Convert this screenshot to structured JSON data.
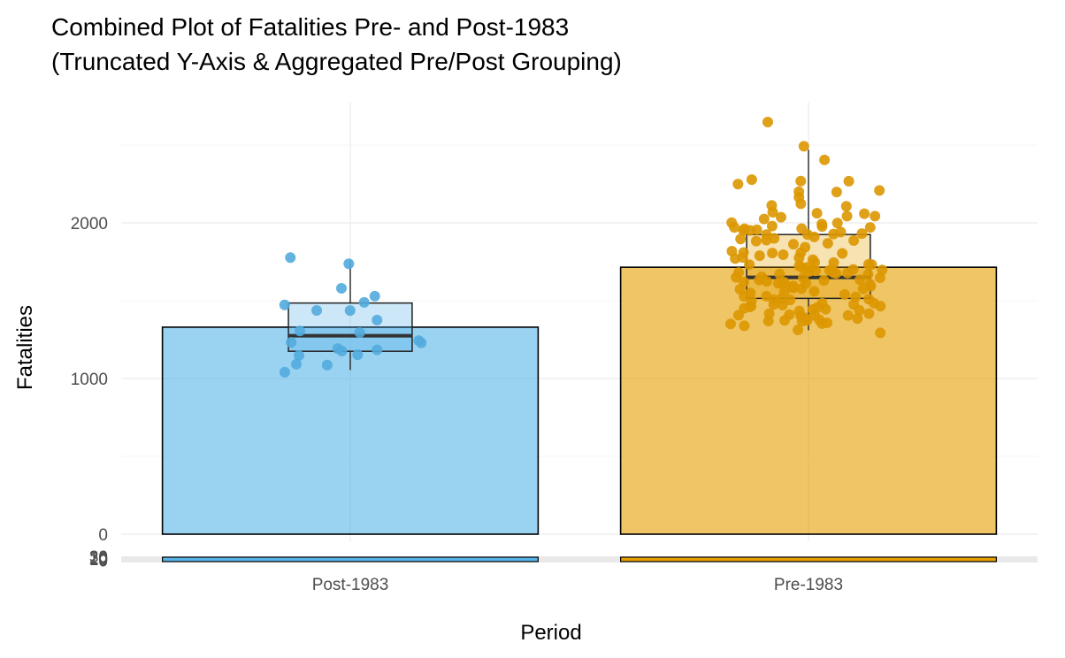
{
  "chart_data": {
    "type": "bar",
    "title_lines": [
      "Combined Plot of Fatalities Pre- and Post-1983",
      "(Truncated Y-Axis & Aggregated Pre/Post Grouping)"
    ],
    "xlabel": "Period",
    "ylabel": "Fatalities",
    "categories": [
      "Post-1983",
      "Pre-1983"
    ],
    "bar_values": [
      1330,
      1715
    ],
    "bar_colors": [
      "#56B4E9",
      "#E69F00"
    ],
    "ylim": [
      -170,
      2720
    ],
    "yticks": [
      0,
      1000,
      2000
    ],
    "inset_tick_labels": [
      "30",
      "20",
      "10",
      "0"
    ],
    "boxplots": [
      {
        "category": "Post-1983",
        "min": 1055,
        "q1": 1175,
        "median": 1275,
        "q3": 1485,
        "max": 1760
      },
      {
        "category": "Pre-1983",
        "min": 1310,
        "q1": 1515,
        "median": 1650,
        "q3": 1925,
        "max": 2470
      }
    ],
    "points": [
      {
        "category": "Post-1983",
        "values": [
          1740,
          1765,
          1580,
          1490,
          1485,
          1450,
          1510,
          1425,
          1360,
          1295,
          1285,
          1265,
          1230,
          1215,
          1195,
          1175,
          1170,
          1165,
          1145,
          1105,
          1080,
          1060
        ]
      },
      {
        "category": "Pre-1983",
        "values": [
          2665,
          2480,
          2400,
          2275,
          2265,
          2250,
          2245,
          2205,
          2200,
          2200,
          2180,
          2120,
          2100,
          2090,
          2080,
          2080,
          2060,
          2050,
          2040,
          2030,
          2020,
          2010,
          2000,
          1995,
          1990,
          1985,
          1980,
          1975,
          1965,
          1960,
          1955,
          1950,
          1945,
          1940,
          1935,
          1930,
          1925,
          1915,
          1905,
          1900,
          1890,
          1880,
          1870,
          1860,
          1850,
          1845,
          1840,
          1830,
          1820,
          1815,
          1810,
          1800,
          1795,
          1790,
          1780,
          1775,
          1770,
          1765,
          1760,
          1750,
          1745,
          1740,
          1735,
          1730,
          1725,
          1720,
          1715,
          1710,
          1705,
          1700,
          1695,
          1690,
          1685,
          1680,
          1675,
          1670,
          1665,
          1660,
          1655,
          1650,
          1648,
          1645,
          1640,
          1635,
          1630,
          1625,
          1620,
          1615,
          1610,
          1605,
          1600,
          1595,
          1590,
          1585,
          1580,
          1575,
          1570,
          1565,
          1560,
          1555,
          1550,
          1545,
          1540,
          1535,
          1530,
          1525,
          1520,
          1515,
          1510,
          1505,
          1500,
          1495,
          1490,
          1485,
          1480,
          1475,
          1470,
          1465,
          1460,
          1455,
          1450,
          1445,
          1440,
          1435,
          1430,
          1425,
          1420,
          1415,
          1410,
          1405,
          1400,
          1395,
          1390,
          1385,
          1380,
          1375,
          1370,
          1365,
          1360,
          1355,
          1350,
          1345,
          1340,
          1330,
          1320,
          1310
        ]
      }
    ],
    "grid": true,
    "legend": "none"
  }
}
